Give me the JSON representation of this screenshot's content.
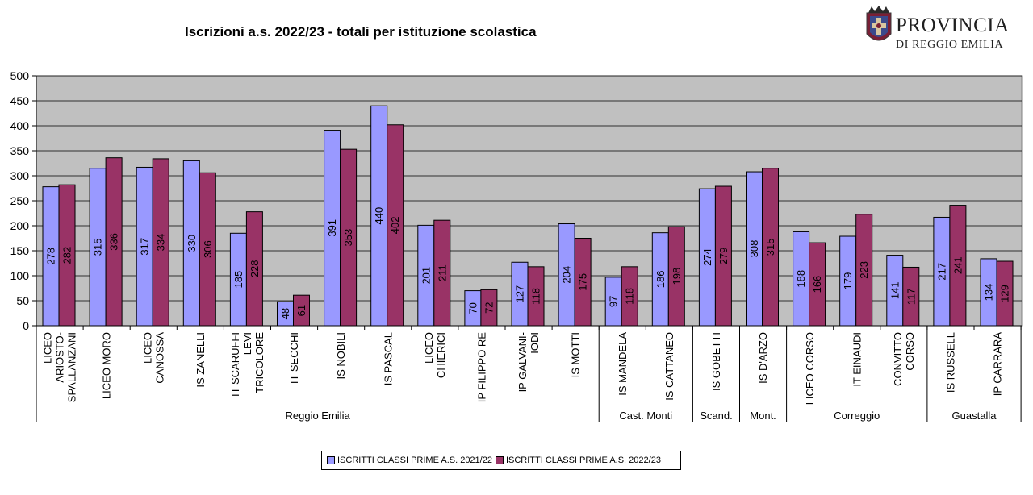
{
  "page": {
    "title": "Iscrizioni a.s. 2022/23 - totali per istituzione scolastica",
    "logo": {
      "line1": "PROVINCIA",
      "line2": "DI REGGIO EMILIA"
    }
  },
  "colors": {
    "plot_bg": "#c0c0c0",
    "series1": "#9999ff",
    "series2": "#993366"
  },
  "chart_data": {
    "type": "bar",
    "title": "Iscrizioni a.s. 2022/23 - totali per istituzione scolastica",
    "xlabel": "",
    "ylabel": "",
    "ylim": [
      0,
      500
    ],
    "yticks": [
      0,
      50,
      100,
      150,
      200,
      250,
      300,
      350,
      400,
      450,
      500
    ],
    "grid": true,
    "legend_position": "bottom",
    "categories": [
      [
        "LICEO",
        "ARIOSTO-",
        "SPALLANZANI"
      ],
      [
        "LICEO MORO"
      ],
      [
        "LICEO",
        "CANOSSA"
      ],
      [
        "IS ZANELLI"
      ],
      [
        "IT SCARUFFI",
        "LEVI",
        "TRICOLORE"
      ],
      [
        "IT SECCHI"
      ],
      [
        "IS NOBILI"
      ],
      [
        "IS PASCAL"
      ],
      [
        "LICEO",
        "CHIERICI"
      ],
      [
        "IP FILIPPO RE"
      ],
      [
        "IP GALVANI-",
        "IODI"
      ],
      [
        "IS MOTTI"
      ],
      [
        "IS MANDELA"
      ],
      [
        "IS CATTANEO"
      ],
      [
        "IS GOBETTI"
      ],
      [
        "IS D'ARZO"
      ],
      [
        "LICEO CORSO"
      ],
      [
        "IT EINAUDI"
      ],
      [
        "CONVITTO",
        "CORSO"
      ],
      [
        "IS RUSSELL"
      ],
      [
        "IP CARRARA"
      ]
    ],
    "groups": [
      {
        "name": "Reggio Emilia",
        "count": 12
      },
      {
        "name": "Cast. Monti",
        "count": 2
      },
      {
        "name": "Scand.",
        "count": 1
      },
      {
        "name": "Mont.",
        "count": 1
      },
      {
        "name": "Correggio",
        "count": 3
      },
      {
        "name": "Guastalla",
        "count": 2
      }
    ],
    "series": [
      {
        "name": "ISCRITTI CLASSI PRIME A.S. 2021/22",
        "values": [
          278,
          315,
          317,
          330,
          185,
          48,
          391,
          440,
          201,
          70,
          127,
          204,
          97,
          186,
          274,
          308,
          188,
          179,
          141,
          217,
          134
        ]
      },
      {
        "name": "ISCRITTI CLASSI PRIME A.S. 2022/23",
        "values": [
          282,
          336,
          334,
          306,
          228,
          61,
          353,
          402,
          211,
          72,
          118,
          175,
          118,
          198,
          279,
          315,
          166,
          223,
          117,
          241,
          129
        ]
      }
    ]
  }
}
